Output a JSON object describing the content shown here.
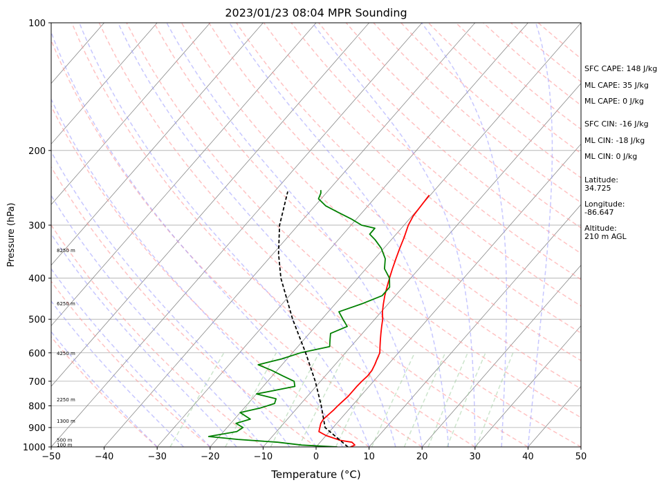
{
  "chart_data": {
    "type": "line",
    "title": "2023/01/23 08:04 MPR Sounding",
    "xlabel": "Temperature (°C)",
    "ylabel": "Pressure (hPa)",
    "xlim": [
      -50,
      50
    ],
    "ylim": [
      1000,
      100
    ],
    "y_scale": "log",
    "grid": true,
    "x_ticks": [
      "−50",
      "−40",
      "−30",
      "−20",
      "−10",
      "0",
      "10",
      "20",
      "30",
      "40",
      "50"
    ],
    "y_ticks": [
      {
        "p": 100,
        "label": "100"
      },
      {
        "p": 200,
        "label": "200"
      },
      {
        "p": 300,
        "label": "300"
      },
      {
        "p": 400,
        "label": "400"
      },
      {
        "p": 500,
        "label": "500"
      },
      {
        "p": 600,
        "label": "600"
      },
      {
        "p": 700,
        "label": "700"
      },
      {
        "p": 800,
        "label": "800"
      },
      {
        "p": 900,
        "label": "900"
      },
      {
        "p": 1000,
        "label": "1000"
      }
    ],
    "height_labels": [
      {
        "p": 990,
        "label": "100 m"
      },
      {
        "p": 965,
        "label": "500 m"
      },
      {
        "p": 870,
        "label": "1300 m"
      },
      {
        "p": 775,
        "label": "2250 m"
      },
      {
        "p": 603,
        "label": "4250 m"
      },
      {
        "p": 460,
        "label": "6250 m"
      },
      {
        "p": 345,
        "label": "8250 m"
      }
    ],
    "colors": {
      "temperature": "#ff0000",
      "dewpoint": "#008000",
      "parcel": "#000000",
      "dry_adiabat": "#ff9999",
      "moist_adiabat": "#9999ff",
      "mixing_ratio": "#99cc99",
      "isotherm": "#888888",
      "isobar": "#aaaaaa"
    },
    "series": [
      {
        "name": "temperature",
        "points": [
          [
            1000,
            6.5
          ],
          [
            990,
            7.0
          ],
          [
            975,
            6.0
          ],
          [
            965,
            3.5
          ],
          [
            940,
            0.0
          ],
          [
            920,
            -2.0
          ],
          [
            900,
            -2.5
          ],
          [
            880,
            -3.0
          ],
          [
            860,
            -3.2
          ],
          [
            840,
            -3.0
          ],
          [
            820,
            -2.8
          ],
          [
            800,
            -2.7
          ],
          [
            780,
            -2.5
          ],
          [
            760,
            -2.3
          ],
          [
            740,
            -2.3
          ],
          [
            720,
            -2.3
          ],
          [
            700,
            -2.2
          ],
          [
            680,
            -2.0
          ],
          [
            660,
            -2.1
          ],
          [
            640,
            -2.5
          ],
          [
            620,
            -3.0
          ],
          [
            600,
            -3.5
          ],
          [
            580,
            -4.5
          ],
          [
            560,
            -5.5
          ],
          [
            540,
            -6.5
          ],
          [
            520,
            -7.5
          ],
          [
            500,
            -8.5
          ],
          [
            480,
            -9.8
          ],
          [
            460,
            -10.9
          ],
          [
            440,
            -12.0
          ],
          [
            420,
            -13.0
          ],
          [
            400,
            -14.0
          ],
          [
            380,
            -15.0
          ],
          [
            360,
            -16.0
          ],
          [
            340,
            -17.0
          ],
          [
            320,
            -18.0
          ],
          [
            300,
            -19.2
          ],
          [
            285,
            -19.8
          ],
          [
            270,
            -20.0
          ],
          [
            255,
            -20.2
          ]
        ]
      },
      {
        "name": "dewpoint",
        "points": [
          [
            1000,
            4.0
          ],
          [
            990,
            -3.0
          ],
          [
            975,
            -8.0
          ],
          [
            960,
            -16.0
          ],
          [
            945,
            -22.0
          ],
          [
            920,
            -17.5
          ],
          [
            900,
            -17.0
          ],
          [
            880,
            -19.0
          ],
          [
            860,
            -17.0
          ],
          [
            830,
            -20.0
          ],
          [
            810,
            -17.0
          ],
          [
            790,
            -15.0
          ],
          [
            770,
            -15.5
          ],
          [
            750,
            -20.0
          ],
          [
            720,
            -14.0
          ],
          [
            700,
            -15.0
          ],
          [
            680,
            -18.0
          ],
          [
            660,
            -21.0
          ],
          [
            640,
            -24.5
          ],
          [
            620,
            -21.0
          ],
          [
            600,
            -18.5
          ],
          [
            580,
            -14.0
          ],
          [
            560,
            -15.0
          ],
          [
            540,
            -16.0
          ],
          [
            520,
            -14.0
          ],
          [
            500,
            -16.0
          ],
          [
            480,
            -18.0
          ],
          [
            460,
            -15.0
          ],
          [
            440,
            -12.5
          ],
          [
            420,
            -12.5
          ],
          [
            400,
            -14.0
          ],
          [
            380,
            -16.5
          ],
          [
            360,
            -18.0
          ],
          [
            340,
            -20.5
          ],
          [
            325,
            -23.0
          ],
          [
            315,
            -25.0
          ],
          [
            305,
            -25.0
          ],
          [
            300,
            -28.0
          ],
          [
            290,
            -31.0
          ],
          [
            280,
            -34.5
          ],
          [
            270,
            -38.0
          ],
          [
            260,
            -40.5
          ],
          [
            252,
            -41.0
          ],
          [
            248,
            -41.5
          ]
        ]
      },
      {
        "name": "parcel",
        "points": [
          [
            1000,
            6.0
          ],
          [
            900,
            -1.5
          ],
          [
            800,
            -5.8
          ],
          [
            700,
            -11.0
          ],
          [
            600,
            -17.5
          ],
          [
            500,
            -25.5
          ],
          [
            400,
            -34.5
          ],
          [
            350,
            -39.0
          ],
          [
            300,
            -43.5
          ],
          [
            250,
            -47.5
          ]
        ]
      }
    ]
  },
  "side_info": {
    "sfc_cape": "SFC CAPE: 148 J/kg",
    "ml_cape_1": "ML CAPE: 35 J/kg",
    "ml_cape_2": "ML CAPE: 0 J/kg",
    "sfc_cin": "SFC CIN: -16 J/kg",
    "ml_cin_1": "ML CIN: -18 J/kg",
    "ml_cin_2": "ML CIN: 0 J/kg",
    "latitude_label": "Latitude:",
    "latitude_value": "34.725",
    "longitude_label": "Longitude:",
    "longitude_value": "-86.647",
    "altitude_label": "Altitude:",
    "altitude_value": "210 m AGL"
  }
}
